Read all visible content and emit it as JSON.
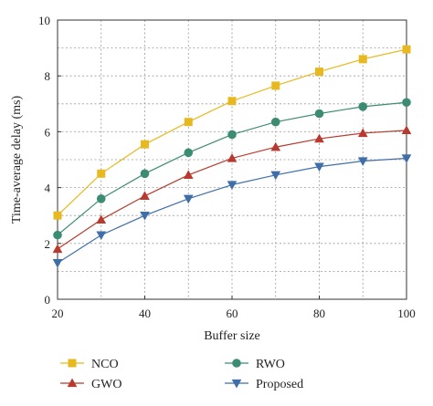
{
  "chart_data": {
    "type": "line",
    "xlabel": "Buffer size",
    "ylabel": "Time-average delay (ms)",
    "xlim": [
      20,
      100
    ],
    "ylim": [
      0,
      10
    ],
    "xticks": [
      20,
      40,
      60,
      80,
      100
    ],
    "yticks": [
      0,
      2,
      4,
      6,
      8,
      10
    ],
    "grid": true,
    "legend_position": "bottom",
    "x": [
      20,
      30,
      40,
      50,
      60,
      70,
      80,
      90,
      100
    ],
    "series": [
      {
        "name": "NCO",
        "color": "#e8b820",
        "marker": "square",
        "values": [
          3.0,
          4.5,
          5.55,
          6.35,
          7.1,
          7.65,
          8.15,
          8.6,
          8.95
        ]
      },
      {
        "name": "GWO",
        "color": "#b83a2e",
        "marker": "triangle-up",
        "values": [
          1.8,
          2.85,
          3.7,
          4.45,
          5.05,
          5.45,
          5.75,
          5.95,
          6.05
        ]
      },
      {
        "name": "RWO",
        "color": "#3c8c74",
        "marker": "circle",
        "values": [
          2.3,
          3.6,
          4.5,
          5.25,
          5.9,
          6.35,
          6.65,
          6.9,
          7.05
        ]
      },
      {
        "name": "Proposed",
        "color": "#3f6ea8",
        "marker": "triangle-down",
        "values": [
          1.3,
          2.3,
          3.0,
          3.6,
          4.1,
          4.45,
          4.75,
          4.95,
          5.05
        ]
      }
    ]
  }
}
